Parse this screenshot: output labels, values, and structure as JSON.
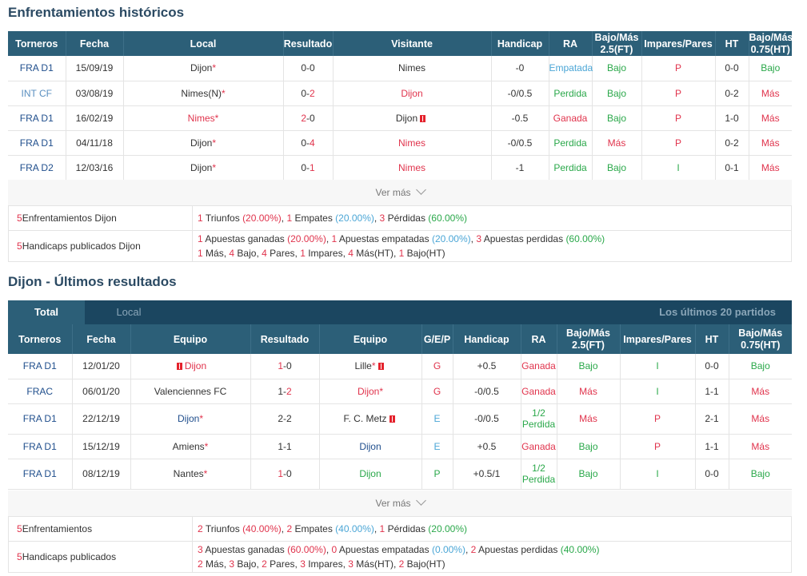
{
  "h2h": {
    "title": "Enfrentamientos históricos",
    "headers": [
      "Torneros",
      "Fecha",
      "Local",
      "Resultado",
      "Visitante",
      "Handicap",
      "RA",
      "Bajo/Más 2.5(FT)",
      "Impares/Pares",
      "HT",
      "Bajo/Más 0.75(HT)"
    ],
    "rows": [
      {
        "league": "FRA D1",
        "league_style": "blue",
        "date": "15/09/19",
        "home": "Dijon",
        "home_style": "dark",
        "home_star": true,
        "home_card": false,
        "score_a": "0",
        "score_b": "0",
        "score_a_style": "dark",
        "score_b_style": "dark",
        "away": "Nimes",
        "away_style": "dark",
        "away_card": false,
        "handicap": "-0",
        "ra": "Empatada",
        "ra_style": "cyan",
        "ou": "Bajo",
        "ou_style": "green",
        "oe": "P",
        "oe_style": "red",
        "ht": "0-0",
        "ht_ou": "Bajo",
        "ht_ou_style": "green"
      },
      {
        "league": "INT CF",
        "league_style": "lblue",
        "date": "03/08/19",
        "home": "Nimes(N)",
        "home_style": "dark",
        "home_star": true,
        "home_card": false,
        "score_a": "0",
        "score_b": "2",
        "score_a_style": "dark",
        "score_b_style": "red",
        "away": "Dijon",
        "away_style": "red",
        "away_card": false,
        "handicap": "-0/0.5",
        "ra": "Perdida",
        "ra_style": "green",
        "ou": "Bajo",
        "ou_style": "green",
        "oe": "P",
        "oe_style": "red",
        "ht": "0-2",
        "ht_ou": "Más",
        "ht_ou_style": "red"
      },
      {
        "league": "FRA D1",
        "league_style": "blue",
        "date": "16/02/19",
        "home": "Nimes",
        "home_style": "red",
        "home_star": true,
        "home_card": false,
        "score_a": "2",
        "score_b": "0",
        "score_a_style": "red",
        "score_b_style": "dark",
        "away": "Dijon",
        "away_style": "dark",
        "away_card": true,
        "handicap": "-0.5",
        "ra": "Ganada",
        "ra_style": "red",
        "ou": "Bajo",
        "ou_style": "green",
        "oe": "P",
        "oe_style": "red",
        "ht": "1-0",
        "ht_ou": "Más",
        "ht_ou_style": "red"
      },
      {
        "league": "FRA D1",
        "league_style": "blue",
        "date": "04/11/18",
        "home": "Dijon",
        "home_style": "dark",
        "home_star": true,
        "home_card": false,
        "score_a": "0",
        "score_b": "4",
        "score_a_style": "dark",
        "score_b_style": "red",
        "away": "Nimes",
        "away_style": "red",
        "away_card": false,
        "handicap": "-0/0.5",
        "ra": "Perdida",
        "ra_style": "green",
        "ou": "Más",
        "ou_style": "red",
        "oe": "P",
        "oe_style": "red",
        "ht": "0-2",
        "ht_ou": "Más",
        "ht_ou_style": "red"
      },
      {
        "league": "FRA D2",
        "league_style": "blue",
        "date": "12/03/16",
        "home": "Dijon",
        "home_style": "dark",
        "home_star": true,
        "home_card": false,
        "score_a": "0",
        "score_b": "1",
        "score_a_style": "dark",
        "score_b_style": "red",
        "away": "Nimes",
        "away_style": "red",
        "away_card": false,
        "handicap": "-1",
        "ra": "Perdida",
        "ra_style": "green",
        "ou": "Bajo",
        "ou_style": "green",
        "oe": "I",
        "oe_style": "green",
        "ht": "0-1",
        "ht_ou": "Más",
        "ht_ou_style": "red"
      }
    ],
    "ver_mas": "Ver más",
    "summary": {
      "count": "5",
      "label1": "Enfrentamientos Dijon",
      "wins_n": "1",
      "wins_t": "Triunfos",
      "wins_p": "(20.00%)",
      "draws_n": "1",
      "draws_t": "Empates",
      "draws_p": "(20.00%)",
      "loss_n": "3",
      "loss_t": "Pérdidas",
      "loss_p": "(60.00%)",
      "label2": "Handicaps publicados Dijon",
      "hw_n": "1",
      "hw_t": "Apuestas ganadas",
      "hw_p": "(20.00%)",
      "hd_n": "1",
      "hd_t": "Apuestas empatadas",
      "hd_p": "(20.00%)",
      "hl_n": "3",
      "hl_t": "Apuestas perdidas",
      "hl_p": "(60.00%)",
      "mas_n": "1",
      "mas_t": "Más,",
      "bajo_n": "4",
      "bajo_t": "Bajo,",
      "pares_n": "4",
      "pares_t": "Pares,",
      "imp_n": "1",
      "imp_t": "Impares,",
      "masht_n": "4",
      "masht_t": "Más(HT),",
      "bajoht_n": "1",
      "bajoht_t": "Bajo(HT)"
    }
  },
  "recent": {
    "title": "Dijon - Últimos resultados",
    "tab_total": "Total",
    "tab_local": "Local",
    "tab_last": "Los últimos 20 partidos",
    "headers": [
      "Torneros",
      "Fecha",
      "Equipo",
      "Resultado",
      "Equipo",
      "G/E/P",
      "Handicap",
      "RA",
      "Bajo/Más 2.5(FT)",
      "Impares/Pares",
      "HT",
      "Bajo/Más 0.75(HT)"
    ],
    "rows": [
      {
        "league": "FRA D1",
        "date": "12/01/20",
        "home": "Dijon",
        "home_style": "red",
        "home_star": false,
        "home_card_before": true,
        "score_a": "1",
        "score_b": "0",
        "score_a_style": "red",
        "score_b_style": "dark",
        "away": "Lille",
        "away_style": "dark",
        "away_star": true,
        "away_card": true,
        "gep": "G",
        "gep_style": "red",
        "handicap": "+0.5",
        "ra1": "Ganada",
        "ra2": "",
        "ra_style": "red",
        "ou": "Bajo",
        "ou_style": "green",
        "oe": "I",
        "oe_style": "green",
        "ht": "0-0",
        "ht_ou": "Bajo",
        "ht_ou_style": "green"
      },
      {
        "league": "FRAC",
        "date": "06/01/20",
        "home": "Valenciennes FC",
        "home_style": "dark",
        "home_star": false,
        "home_card_before": false,
        "score_a": "1",
        "score_b": "2",
        "score_a_style": "dark",
        "score_b_style": "red",
        "away": "Dijon",
        "away_style": "red",
        "away_star": true,
        "away_card": false,
        "gep": "G",
        "gep_style": "red",
        "handicap": "-0/0.5",
        "ra1": "Ganada",
        "ra2": "",
        "ra_style": "red",
        "ou": "Más",
        "ou_style": "red",
        "oe": "I",
        "oe_style": "green",
        "ht": "1-1",
        "ht_ou": "Más",
        "ht_ou_style": "red"
      },
      {
        "league": "FRA D1",
        "date": "22/12/19",
        "home": "Dijon",
        "home_style": "blue",
        "home_star": true,
        "home_card_before": false,
        "score_a": "2",
        "score_b": "2",
        "score_a_style": "dark",
        "score_b_style": "dark",
        "away": "F. C. Metz",
        "away_style": "dark",
        "away_star": false,
        "away_card": true,
        "gep": "E",
        "gep_style": "cyan",
        "handicap": "-0/0.5",
        "ra1": "1/2",
        "ra2": "Perdida",
        "ra_style": "green",
        "ou": "Más",
        "ou_style": "red",
        "oe": "P",
        "oe_style": "red",
        "ht": "2-1",
        "ht_ou": "Más",
        "ht_ou_style": "red"
      },
      {
        "league": "FRA D1",
        "date": "15/12/19",
        "home": "Amiens",
        "home_style": "dark",
        "home_star": true,
        "home_card_before": false,
        "score_a": "1",
        "score_b": "1",
        "score_a_style": "dark",
        "score_b_style": "dark",
        "away": "Dijon",
        "away_style": "blue",
        "away_star": false,
        "away_card": false,
        "gep": "E",
        "gep_style": "cyan",
        "handicap": "+0.5",
        "ra1": "Ganada",
        "ra2": "",
        "ra_style": "red",
        "ou": "Bajo",
        "ou_style": "green",
        "oe": "P",
        "oe_style": "red",
        "ht": "1-1",
        "ht_ou": "Más",
        "ht_ou_style": "red"
      },
      {
        "league": "FRA D1",
        "date": "08/12/19",
        "home": "Nantes",
        "home_style": "dark",
        "home_star": true,
        "home_card_before": false,
        "score_a": "1",
        "score_b": "0",
        "score_a_style": "red",
        "score_b_style": "dark",
        "away": "Dijon",
        "away_style": "green",
        "away_star": false,
        "away_card": false,
        "gep": "P",
        "gep_style": "green",
        "handicap": "+0.5/1",
        "ra1": "1/2",
        "ra2": "Perdida",
        "ra_style": "green",
        "ou": "Bajo",
        "ou_style": "green",
        "oe": "I",
        "oe_style": "green",
        "ht": "0-0",
        "ht_ou": "Bajo",
        "ht_ou_style": "green"
      }
    ],
    "ver_mas": "Ver más",
    "summary": {
      "count": "5",
      "label1": "Enfrentamientos",
      "wins_n": "2",
      "wins_t": "Triunfos",
      "wins_p": "(40.00%)",
      "draws_n": "2",
      "draws_t": "Empates",
      "draws_p": "(40.00%)",
      "loss_n": "1",
      "loss_t": "Pérdidas",
      "loss_p": "(20.00%)",
      "label2": "Handicaps publicados",
      "hw_n": "3",
      "hw_t": "Apuestas ganadas",
      "hw_p": "(60.00%)",
      "hd_n": "0",
      "hd_t": "Apuestas empatadas",
      "hd_p": "(0.00%)",
      "hl_n": "2",
      "hl_t": "Apuestas perdidas",
      "hl_p": "(40.00%)",
      "mas_n": "2",
      "mas_t": "Más,",
      "bajo_n": "3",
      "bajo_t": "Bajo,",
      "pares_n": "2",
      "pares_t": "Pares,",
      "imp_n": "3",
      "imp_t": "Impares,",
      "masht_n": "3",
      "masht_t": "Más(HT),",
      "bajoht_n": "2",
      "bajoht_t": "Bajo(HT)"
    }
  }
}
